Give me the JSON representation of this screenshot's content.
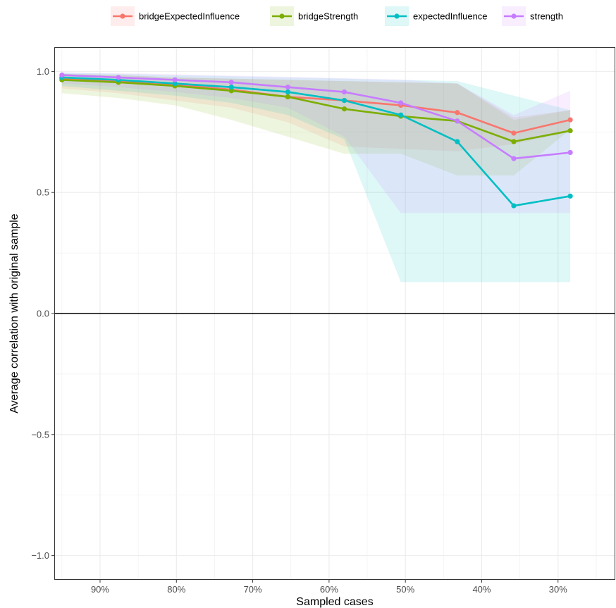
{
  "chart_data": {
    "type": "line",
    "title": "",
    "xlabel": "Sampled cases",
    "ylabel": "Average correlation with original sample",
    "x_ticks": [
      {
        "value": 0.9,
        "label": "90%"
      },
      {
        "value": 0.8,
        "label": "80%"
      },
      {
        "value": 0.7,
        "label": "70%"
      },
      {
        "value": 0.6,
        "label": "60%"
      },
      {
        "value": 0.5,
        "label": "50%"
      },
      {
        "value": 0.4,
        "label": "40%"
      },
      {
        "value": 0.3,
        "label": "30%"
      }
    ],
    "y_ticks": [
      {
        "value": 1.0,
        "label": "1.0"
      },
      {
        "value": 0.5,
        "label": "0.5"
      },
      {
        "value": 0.0,
        "label": "0.0"
      },
      {
        "value": -0.5,
        "label": "−0.5"
      },
      {
        "value": -1.0,
        "label": "−1.0"
      }
    ],
    "xlim": [
      0.96,
      0.225
    ],
    "ylim": [
      -1.1,
      1.1
    ],
    "x_reversed": true,
    "grid": true,
    "reference_line_y": 0,
    "legend_position": "top",
    "x": [
      0.95,
      0.876,
      0.802,
      0.728,
      0.654,
      0.58,
      0.506,
      0.432,
      0.358,
      0.284
    ],
    "series": [
      {
        "name": "bridgeExpectedInfluence",
        "color": "#F8766D",
        "values": [
          0.97,
          0.96,
          0.945,
          0.925,
          0.895,
          0.88,
          0.86,
          0.83,
          0.745,
          0.8
        ],
        "band_low": [
          0.93,
          0.91,
          0.88,
          0.85,
          0.79,
          0.69,
          0.68,
          0.67,
          0.7,
          0.75
        ],
        "band_high": [
          0.99,
          0.985,
          0.975,
          0.97,
          0.965,
          0.96,
          0.955,
          0.95,
          0.81,
          0.84
        ]
      },
      {
        "name": "bridgeStrength",
        "color": "#7CAE00",
        "values": [
          0.965,
          0.955,
          0.94,
          0.92,
          0.895,
          0.845,
          0.815,
          0.795,
          0.71,
          0.755
        ],
        "band_low": [
          0.91,
          0.89,
          0.86,
          0.8,
          0.73,
          0.66,
          0.66,
          0.57,
          0.57,
          0.76
        ],
        "band_high": [
          0.99,
          0.985,
          0.975,
          0.97,
          0.965,
          0.96,
          0.955,
          0.95,
          0.8,
          0.84
        ]
      },
      {
        "name": "expectedInfluence",
        "color": "#00BFC4",
        "values": [
          0.975,
          0.965,
          0.95,
          0.935,
          0.915,
          0.88,
          0.82,
          0.71,
          0.445,
          0.485
        ],
        "band_low": [
          0.94,
          0.92,
          0.9,
          0.87,
          0.82,
          0.72,
          0.13,
          0.13,
          0.13,
          0.13
        ],
        "band_high": [
          0.995,
          0.99,
          0.985,
          0.98,
          0.975,
          0.97,
          0.965,
          0.96,
          0.9,
          0.84
        ]
      },
      {
        "name": "strength",
        "color": "#C77CFF",
        "values": [
          0.985,
          0.975,
          0.965,
          0.955,
          0.935,
          0.915,
          0.87,
          0.795,
          0.64,
          0.665
        ],
        "band_low": [
          0.95,
          0.935,
          0.915,
          0.89,
          0.85,
          0.73,
          0.415,
          0.415,
          0.415,
          0.415
        ],
        "band_high": [
          0.997,
          0.993,
          0.988,
          0.983,
          0.978,
          0.972,
          0.966,
          0.95,
          0.82,
          0.92
        ]
      }
    ]
  }
}
